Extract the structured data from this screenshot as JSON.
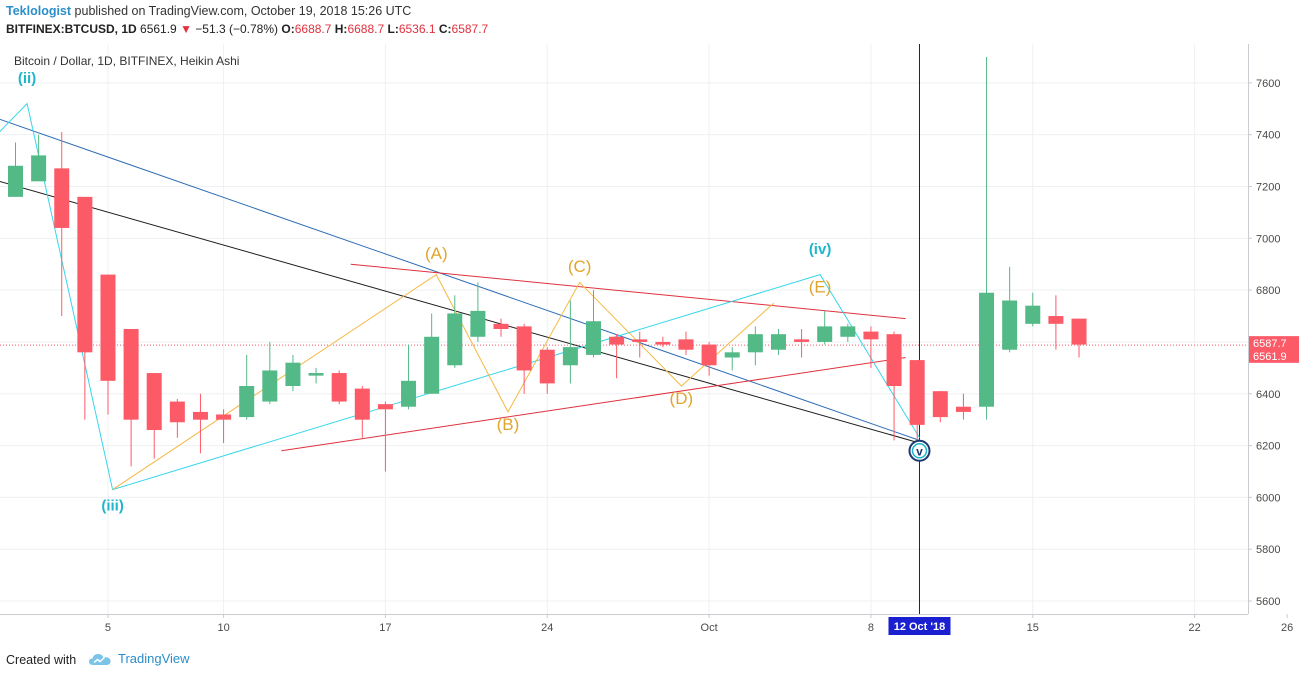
{
  "header": {
    "author": "Teklologist",
    "published_text": "published on TradingView.com, October 19, 2018 15:26 UTC",
    "symbol": "BITFINEX:BTCUSD, 1D",
    "last": "6561.9",
    "change": "−51.3 (−0.78%)",
    "o_label": "O:",
    "o_value": "6688.7",
    "h_label": "H:",
    "h_value": "6688.7",
    "l_label": "L:",
    "l_value": "6536.1",
    "c_label": "C:",
    "c_value": "6587.7"
  },
  "footer": {
    "created_with": "Created with",
    "brand": "TradingView"
  },
  "colors": {
    "up": "#53b987",
    "down": "#fd5a68",
    "axis_text": "#4a4a4a",
    "accent": "#2b8ec8"
  },
  "chart_data": {
    "type": "candlestick",
    "title": "Bitcoin / Dollar, 1D, BITFINEX, Heikin Ashi",
    "ylim": [
      5550,
      7750
    ],
    "y_ticks": [
      5600,
      5800,
      6000,
      6200,
      6400,
      6600,
      6800,
      7000,
      7200,
      7400,
      7600
    ],
    "x_tick_labels": [
      {
        "day": 5,
        "label": "5"
      },
      {
        "day": 10,
        "label": "10"
      },
      {
        "day": 17,
        "label": "17"
      },
      {
        "day": 24,
        "label": "24"
      },
      {
        "day": 31,
        "label": "Oct"
      },
      {
        "day": 38,
        "label": "8"
      },
      {
        "day": 45,
        "label": "15"
      },
      {
        "day": 52,
        "label": "22"
      },
      {
        "day": 56,
        "label": "26"
      }
    ],
    "candles": [
      {
        "d": 1,
        "o": 7160,
        "h": 7370,
        "l": 7160,
        "c": 7280
      },
      {
        "d": 2,
        "o": 7220,
        "h": 7400,
        "l": 7220,
        "c": 7320
      },
      {
        "d": 3,
        "o": 7270,
        "h": 7410,
        "l": 6700,
        "c": 7040
      },
      {
        "d": 4,
        "o": 7160,
        "h": 7160,
        "l": 6300,
        "c": 6560
      },
      {
        "d": 5,
        "o": 6860,
        "h": 6860,
        "l": 6320,
        "c": 6450
      },
      {
        "d": 6,
        "o": 6650,
        "h": 6650,
        "l": 6120,
        "c": 6300
      },
      {
        "d": 7,
        "o": 6480,
        "h": 6480,
        "l": 6150,
        "c": 6260
      },
      {
        "d": 8,
        "o": 6370,
        "h": 6380,
        "l": 6230,
        "c": 6290
      },
      {
        "d": 9,
        "o": 6330,
        "h": 6400,
        "l": 6170,
        "c": 6300
      },
      {
        "d": 10,
        "o": 6320,
        "h": 6340,
        "l": 6210,
        "c": 6300
      },
      {
        "d": 11,
        "o": 6310,
        "h": 6550,
        "l": 6300,
        "c": 6430
      },
      {
        "d": 12,
        "o": 6370,
        "h": 6600,
        "l": 6360,
        "c": 6490
      },
      {
        "d": 13,
        "o": 6430,
        "h": 6550,
        "l": 6410,
        "c": 6520
      },
      {
        "d": 14,
        "o": 6470,
        "h": 6500,
        "l": 6440,
        "c": 6480
      },
      {
        "d": 15,
        "o": 6480,
        "h": 6490,
        "l": 6360,
        "c": 6370
      },
      {
        "d": 16,
        "o": 6420,
        "h": 6430,
        "l": 6230,
        "c": 6300
      },
      {
        "d": 17,
        "o": 6360,
        "h": 6370,
        "l": 6100,
        "c": 6340
      },
      {
        "d": 18,
        "o": 6350,
        "h": 6590,
        "l": 6340,
        "c": 6450
      },
      {
        "d": 19,
        "o": 6400,
        "h": 6710,
        "l": 6400,
        "c": 6620
      },
      {
        "d": 20,
        "o": 6510,
        "h": 6780,
        "l": 6500,
        "c": 6710
      },
      {
        "d": 21,
        "o": 6620,
        "h": 6830,
        "l": 6600,
        "c": 6720
      },
      {
        "d": 22,
        "o": 6670,
        "h": 6690,
        "l": 6620,
        "c": 6650
      },
      {
        "d": 23,
        "o": 6660,
        "h": 6670,
        "l": 6400,
        "c": 6490
      },
      {
        "d": 24,
        "o": 6570,
        "h": 6580,
        "l": 6400,
        "c": 6440
      },
      {
        "d": 25,
        "o": 6510,
        "h": 6760,
        "l": 6440,
        "c": 6580
      },
      {
        "d": 26,
        "o": 6550,
        "h": 6800,
        "l": 6540,
        "c": 6680
      },
      {
        "d": 27,
        "o": 6620,
        "h": 6630,
        "l": 6460,
        "c": 6590
      },
      {
        "d": 28,
        "o": 6610,
        "h": 6640,
        "l": 6540,
        "c": 6600
      },
      {
        "d": 29,
        "o": 6600,
        "h": 6620,
        "l": 6580,
        "c": 6590
      },
      {
        "d": 30,
        "o": 6610,
        "h": 6640,
        "l": 6550,
        "c": 6570
      },
      {
        "d": 31,
        "o": 6590,
        "h": 6600,
        "l": 6470,
        "c": 6510
      },
      {
        "d": 32,
        "o": 6540,
        "h": 6580,
        "l": 6490,
        "c": 6560
      },
      {
        "d": 33,
        "o": 6560,
        "h": 6660,
        "l": 6510,
        "c": 6630
      },
      {
        "d": 34,
        "o": 6570,
        "h": 6650,
        "l": 6550,
        "c": 6630
      },
      {
        "d": 35,
        "o": 6610,
        "h": 6650,
        "l": 6540,
        "c": 6600
      },
      {
        "d": 36,
        "o": 6600,
        "h": 6720,
        "l": 6590,
        "c": 6660
      },
      {
        "d": 37,
        "o": 6620,
        "h": 6670,
        "l": 6600,
        "c": 6660
      },
      {
        "d": 38,
        "o": 6640,
        "h": 6660,
        "l": 6500,
        "c": 6610
      },
      {
        "d": 39,
        "o": 6630,
        "h": 6640,
        "l": 6220,
        "c": 6430
      },
      {
        "d": 40,
        "o": 6530,
        "h": 6530,
        "l": 6190,
        "c": 6280
      },
      {
        "d": 41,
        "o": 6410,
        "h": 6410,
        "l": 6290,
        "c": 6310
      },
      {
        "d": 42,
        "o": 6350,
        "h": 6400,
        "l": 6300,
        "c": 6330
      },
      {
        "d": 43,
        "o": 6350,
        "h": 7700,
        "l": 6300,
        "c": 6790
      },
      {
        "d": 44,
        "o": 6570,
        "h": 6890,
        "l": 6560,
        "c": 6760
      },
      {
        "d": 45,
        "o": 6670,
        "h": 6790,
        "l": 6660,
        "c": 6740
      },
      {
        "d": 46,
        "o": 6700,
        "h": 6780,
        "l": 6570,
        "c": 6670
      },
      {
        "d": 47,
        "o": 6690,
        "h": 6690,
        "l": 6540,
        "c": 6590
      }
    ],
    "trendlines": [
      {
        "name": "blue-trendline",
        "color": "#2f6db5",
        "from": [
          0.3,
          7460
        ],
        "to": [
          40.1,
          6220
        ]
      },
      {
        "name": "black-trendline",
        "color": "#1a1a1a",
        "from": [
          0.3,
          7220
        ],
        "to": [
          40.1,
          6210
        ]
      },
      {
        "name": "red-upper-trendline",
        "color": "#e0313d",
        "from": [
          15.5,
          6900
        ],
        "to": [
          39.5,
          6690
        ]
      },
      {
        "name": "red-lower-trendline",
        "color": "#e0313d",
        "from": [
          12.5,
          6180
        ],
        "to": [
          39.5,
          6540
        ]
      }
    ],
    "wave_cyan": [
      [
        0.3,
        7410
      ],
      [
        1.5,
        7520
      ],
      [
        5.2,
        6030
      ],
      [
        35.8,
        6860
      ],
      [
        40.1,
        6230
      ]
    ],
    "wave_orange": [
      [
        5.2,
        6030
      ],
      [
        19.2,
        6860
      ],
      [
        22.3,
        6330
      ],
      [
        25.4,
        6830
      ],
      [
        29.8,
        6430
      ],
      [
        33.8,
        6750
      ]
    ],
    "labels_cyan": [
      {
        "text": "(ii)",
        "d": 1.5,
        "price": 7600
      },
      {
        "text": "(iii)",
        "d": 5.2,
        "price": 5950
      },
      {
        "text": "(iv)",
        "d": 35.8,
        "price": 6940
      }
    ],
    "labels_orange": [
      {
        "text": "(A)",
        "d": 19.2,
        "price": 6920
      },
      {
        "text": "(B)",
        "d": 22.3,
        "price": 6260
      },
      {
        "text": "(C)",
        "d": 25.4,
        "price": 6870
      },
      {
        "text": "(D)",
        "d": 29.8,
        "price": 6360
      },
      {
        "text": "(E)",
        "d": 35.8,
        "price": 6790
      }
    ],
    "price_tags": [
      {
        "label": "6587.7",
        "price": 6587.7,
        "color": "#fd5a68"
      },
      {
        "label": "6561.9",
        "price": 6561.9,
        "color": "#fd5a68"
      }
    ],
    "current_price_line": 6587.7,
    "vertical_marker": {
      "d": 40.1,
      "label": "12 Oct '18"
    },
    "circle_marker": {
      "d": 40.1,
      "price": 6180,
      "text": "v"
    }
  }
}
